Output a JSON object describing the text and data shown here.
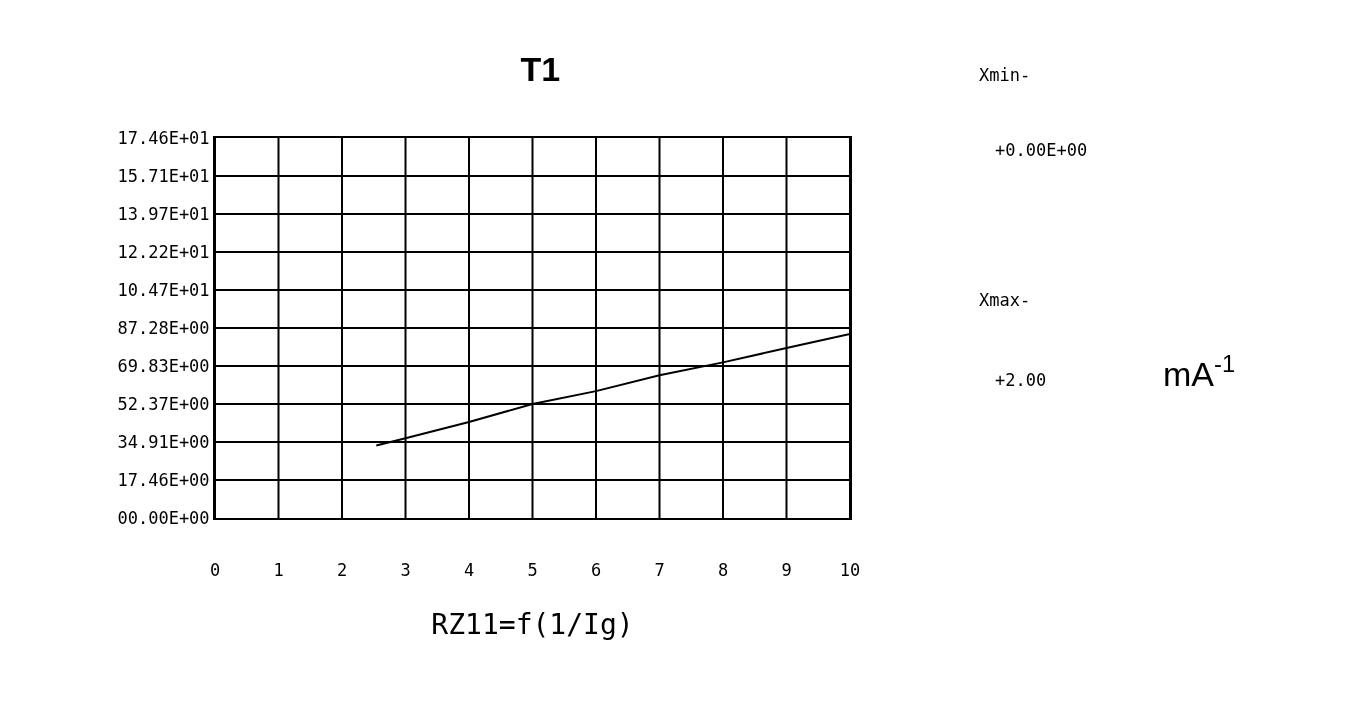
{
  "chart_data": {
    "type": "line",
    "title": "T1",
    "xlabel": "RZ11=f(1/Ig)",
    "x": [
      2.54,
      3,
      4,
      5,
      6,
      7,
      8,
      9,
      10
    ],
    "series": [
      {
        "color": "#000000",
        "values": [
          33.3,
          36.6,
          44.1,
          52.4,
          58.3,
          65.6,
          71.5,
          78.1,
          84.5
        ]
      }
    ],
    "xlim": [
      0,
      10
    ],
    "xticks": [
      0,
      1,
      2,
      3,
      4,
      5,
      6,
      7,
      8,
      9,
      10
    ],
    "ylim": [
      0,
      174.6
    ],
    "yticks": [
      {
        "value": 0,
        "label": "00.00E+00"
      },
      {
        "value": 17.46,
        "label": "17.46E+00"
      },
      {
        "value": 34.91,
        "label": "34.91E+00"
      },
      {
        "value": 52.37,
        "label": "52.37E+00"
      },
      {
        "value": 69.83,
        "label": "69.83E+00"
      },
      {
        "value": 87.28,
        "label": "87.28E+00"
      },
      {
        "value": 104.7,
        "label": "10.47E+01"
      },
      {
        "value": 122.2,
        "label": "12.22E+01"
      },
      {
        "value": 139.7,
        "label": "13.97E+01"
      },
      {
        "value": 157.1,
        "label": "15.71E+01"
      },
      {
        "value": 174.6,
        "label": "17.46E+01"
      }
    ],
    "annotations": [
      "Xmin-",
      "+0.00E+00",
      "Xmax-",
      "+2.00",
      "mA$^{-1}$"
    ],
    "grid": true,
    "marker": "none",
    "line_style": "solid"
  }
}
